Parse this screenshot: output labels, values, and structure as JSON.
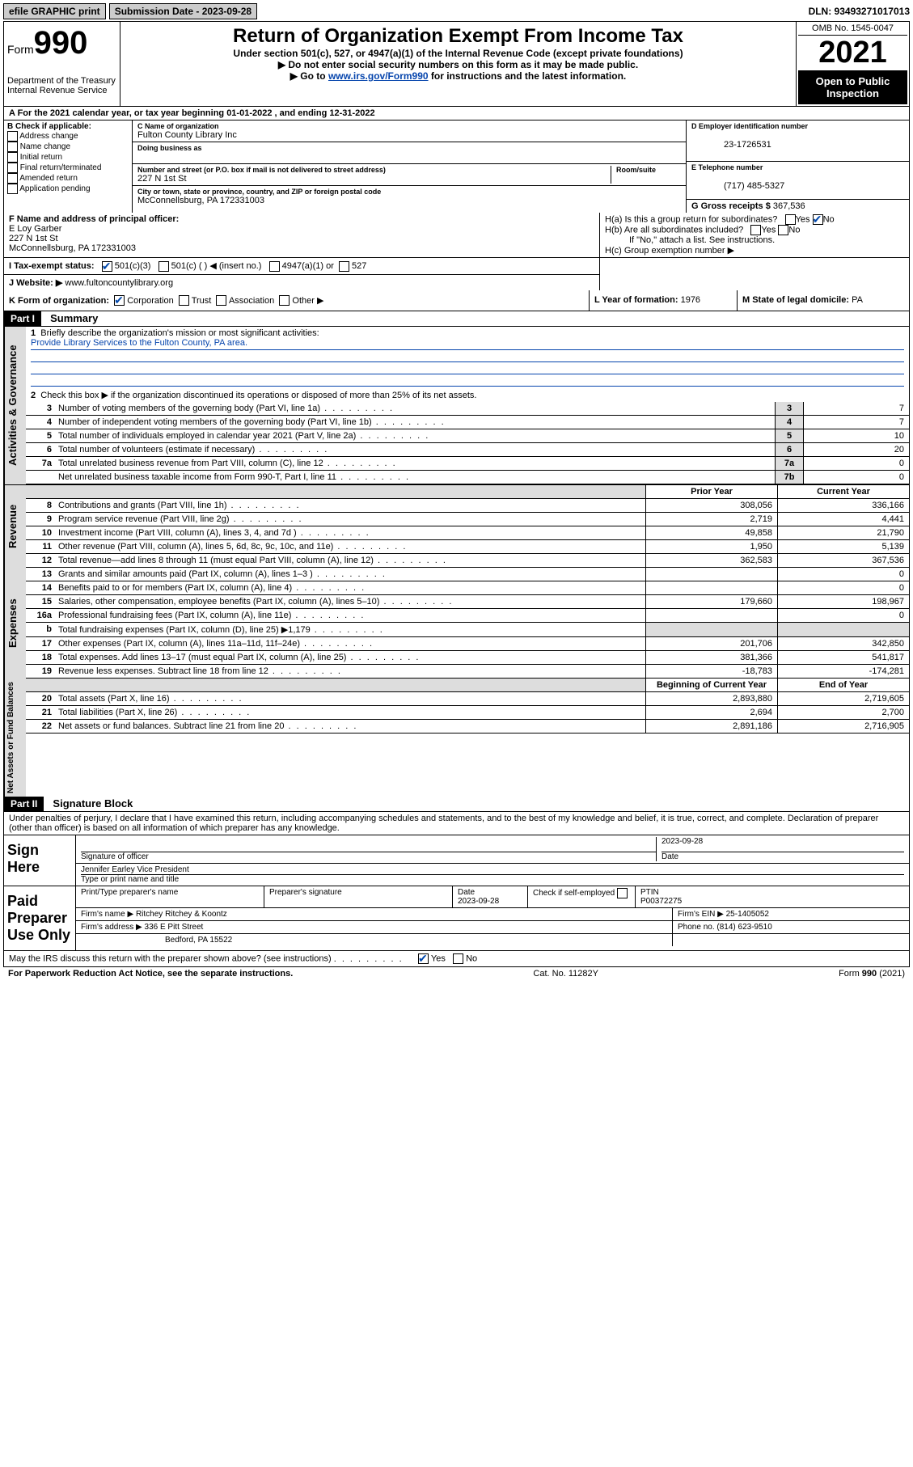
{
  "topbar": {
    "efile": "efile GRAPHIC print",
    "submission_label": "Submission Date - 2023-09-28",
    "dln_label": "DLN: 93493271017013"
  },
  "header": {
    "form_word": "Form",
    "form_num": "990",
    "dept": "Department of the Treasury",
    "irs": "Internal Revenue Service",
    "title": "Return of Organization Exempt From Income Tax",
    "sub1": "Under section 501(c), 527, or 4947(a)(1) of the Internal Revenue Code (except private foundations)",
    "sub2": "▶ Do not enter social security numbers on this form as it may be made public.",
    "sub3_pre": "▶ Go to ",
    "sub3_link": "www.irs.gov/Form990",
    "sub3_post": " for instructions and the latest information.",
    "omb": "OMB No. 1545-0047",
    "year": "2021",
    "open_pub": "Open to Public Inspection"
  },
  "row_a": "A For the 2021 calendar year, or tax year beginning 01-01-2022    , and ending 12-31-2022",
  "box_b": {
    "title": "B Check if applicable:",
    "opts": [
      "Address change",
      "Name change",
      "Initial return",
      "Final return/terminated",
      "Amended return",
      "Application pending"
    ]
  },
  "box_c": {
    "name_lbl": "C Name of organization",
    "name": "Fulton County Library Inc",
    "dba_lbl": "Doing business as",
    "addr_lbl": "Number and street (or P.O. box if mail is not delivered to street address)",
    "room_lbl": "Room/suite",
    "addr": "227 N 1st St",
    "city_lbl": "City or town, state or province, country, and ZIP or foreign postal code",
    "city": "McConnellsburg, PA  172331003"
  },
  "box_d": {
    "lbl": "D Employer identification number",
    "val": "23-1726531"
  },
  "box_e": {
    "lbl": "E Telephone number",
    "val": "(717) 485-5327"
  },
  "box_g": {
    "lbl": "G Gross receipts $",
    "val": "367,536"
  },
  "box_f": {
    "lbl": "F Name and address of principal officer:",
    "name": "E Loy Garber",
    "addr": "227 N 1st St",
    "city": "McConnellsburg, PA  172331003"
  },
  "box_h": {
    "a": "H(a)  Is this a group return for subordinates?",
    "b": "H(b)  Are all subordinates included?",
    "note": "If \"No,\" attach a list. See instructions.",
    "c": "H(c)  Group exemption number ▶",
    "yes": "Yes",
    "no": "No"
  },
  "row_i": {
    "lbl": "I    Tax-exempt status:",
    "o1": "501(c)(3)",
    "o2": "501(c) (  ) ◀ (insert no.)",
    "o3": "4947(a)(1) or",
    "o4": "527"
  },
  "row_j": {
    "lbl": "J   Website: ▶",
    "val": "www.fultoncountylibrary.org"
  },
  "row_k": {
    "lbl": "K Form of organization:",
    "o1": "Corporation",
    "o2": "Trust",
    "o3": "Association",
    "o4": "Other ▶"
  },
  "row_l": {
    "lbl": "L Year of formation:",
    "val": "1976"
  },
  "row_m": {
    "lbl": "M State of legal domicile:",
    "val": "PA"
  },
  "part1": {
    "hdr": "Part I",
    "title": "Summary",
    "l1": "Briefly describe the organization's mission or most significant activities:",
    "mission": "Provide Library Services to the Fulton County, PA area.",
    "l2": "Check this box ▶        if the organization discontinued its operations or disposed of more than 25% of its net assets.",
    "side_ag": "Activities & Governance",
    "side_rev": "Revenue",
    "side_exp": "Expenses",
    "side_na": "Net Assets or Fund Balances",
    "col_prior": "Prior Year",
    "col_curr": "Current Year",
    "col_beg": "Beginning of Current Year",
    "col_end": "End of Year",
    "lines_gov": [
      {
        "n": "3",
        "d": "Number of voting members of the governing body (Part VI, line 1a)",
        "b": "3",
        "v": "7"
      },
      {
        "n": "4",
        "d": "Number of independent voting members of the governing body (Part VI, line 1b)",
        "b": "4",
        "v": "7"
      },
      {
        "n": "5",
        "d": "Total number of individuals employed in calendar year 2021 (Part V, line 2a)",
        "b": "5",
        "v": "10"
      },
      {
        "n": "6",
        "d": "Total number of volunteers (estimate if necessary)",
        "b": "6",
        "v": "20"
      },
      {
        "n": "7a",
        "d": "Total unrelated business revenue from Part VIII, column (C), line 12",
        "b": "7a",
        "v": "0"
      },
      {
        "n": "",
        "d": "Net unrelated business taxable income from Form 990-T, Part I, line 11",
        "b": "7b",
        "v": "0"
      }
    ],
    "lines_rev": [
      {
        "n": "8",
        "d": "Contributions and grants (Part VIII, line 1h)",
        "p": "308,056",
        "c": "336,166"
      },
      {
        "n": "9",
        "d": "Program service revenue (Part VIII, line 2g)",
        "p": "2,719",
        "c": "4,441"
      },
      {
        "n": "10",
        "d": "Investment income (Part VIII, column (A), lines 3, 4, and 7d )",
        "p": "49,858",
        "c": "21,790"
      },
      {
        "n": "11",
        "d": "Other revenue (Part VIII, column (A), lines 5, 6d, 8c, 9c, 10c, and 11e)",
        "p": "1,950",
        "c": "5,139"
      },
      {
        "n": "12",
        "d": "Total revenue—add lines 8 through 11 (must equal Part VIII, column (A), line 12)",
        "p": "362,583",
        "c": "367,536"
      }
    ],
    "lines_exp": [
      {
        "n": "13",
        "d": "Grants and similar amounts paid (Part IX, column (A), lines 1–3 )",
        "p": "",
        "c": "0"
      },
      {
        "n": "14",
        "d": "Benefits paid to or for members (Part IX, column (A), line 4)",
        "p": "",
        "c": "0"
      },
      {
        "n": "15",
        "d": "Salaries, other compensation, employee benefits (Part IX, column (A), lines 5–10)",
        "p": "179,660",
        "c": "198,967"
      },
      {
        "n": "16a",
        "d": "Professional fundraising fees (Part IX, column (A), line 11e)",
        "p": "",
        "c": "0"
      },
      {
        "n": "b",
        "d": "Total fundraising expenses (Part IX, column (D), line 25) ▶1,179",
        "p": "grey",
        "c": "grey"
      },
      {
        "n": "17",
        "d": "Other expenses (Part IX, column (A), lines 11a–11d, 11f–24e)",
        "p": "201,706",
        "c": "342,850"
      },
      {
        "n": "18",
        "d": "Total expenses. Add lines 13–17 (must equal Part IX, column (A), line 25)",
        "p": "381,366",
        "c": "541,817"
      },
      {
        "n": "19",
        "d": "Revenue less expenses. Subtract line 18 from line 12",
        "p": "-18,783",
        "c": "-174,281"
      }
    ],
    "lines_na": [
      {
        "n": "20",
        "d": "Total assets (Part X, line 16)",
        "p": "2,893,880",
        "c": "2,719,605"
      },
      {
        "n": "21",
        "d": "Total liabilities (Part X, line 26)",
        "p": "2,694",
        "c": "2,700"
      },
      {
        "n": "22",
        "d": "Net assets or fund balances. Subtract line 21 from line 20",
        "p": "2,891,186",
        "c": "2,716,905"
      }
    ]
  },
  "part2": {
    "hdr": "Part II",
    "title": "Signature Block",
    "decl": "Under penalties of perjury, I declare that I have examined this return, including accompanying schedules and statements, and to the best of my knowledge and belief, it is true, correct, and complete. Declaration of preparer (other than officer) is based on all information of which preparer has any knowledge.",
    "sign_here": "Sign Here",
    "sig_officer": "Signature of officer",
    "sig_date": "2023-09-28",
    "date_lbl": "Date",
    "officer_name": "Jennifer Earley  Vice President",
    "type_name": "Type or print name and title",
    "paid_prep": "Paid Preparer Use Only",
    "prep_name_lbl": "Print/Type preparer's name",
    "prep_sig_lbl": "Preparer's signature",
    "prep_date": "2023-09-28",
    "check_self": "Check         if self-employed",
    "ptin_lbl": "PTIN",
    "ptin": "P00372275",
    "firm_name_lbl": "Firm's name    ▶",
    "firm_name": "Ritchey Ritchey & Koontz",
    "firm_ein_lbl": "Firm's EIN ▶",
    "firm_ein": "25-1405052",
    "firm_addr_lbl": "Firm's address ▶",
    "firm_addr1": "336 E Pitt Street",
    "firm_addr2": "Bedford, PA  15522",
    "phone_lbl": "Phone no.",
    "phone": "(814) 623-9510",
    "discuss": "May the IRS discuss this return with the preparer shown above? (see instructions)",
    "yes": "Yes",
    "no": "No"
  },
  "footer": {
    "left": "For Paperwork Reduction Act Notice, see the separate instructions.",
    "mid": "Cat. No. 11282Y",
    "right": "Form 990 (2021)"
  }
}
